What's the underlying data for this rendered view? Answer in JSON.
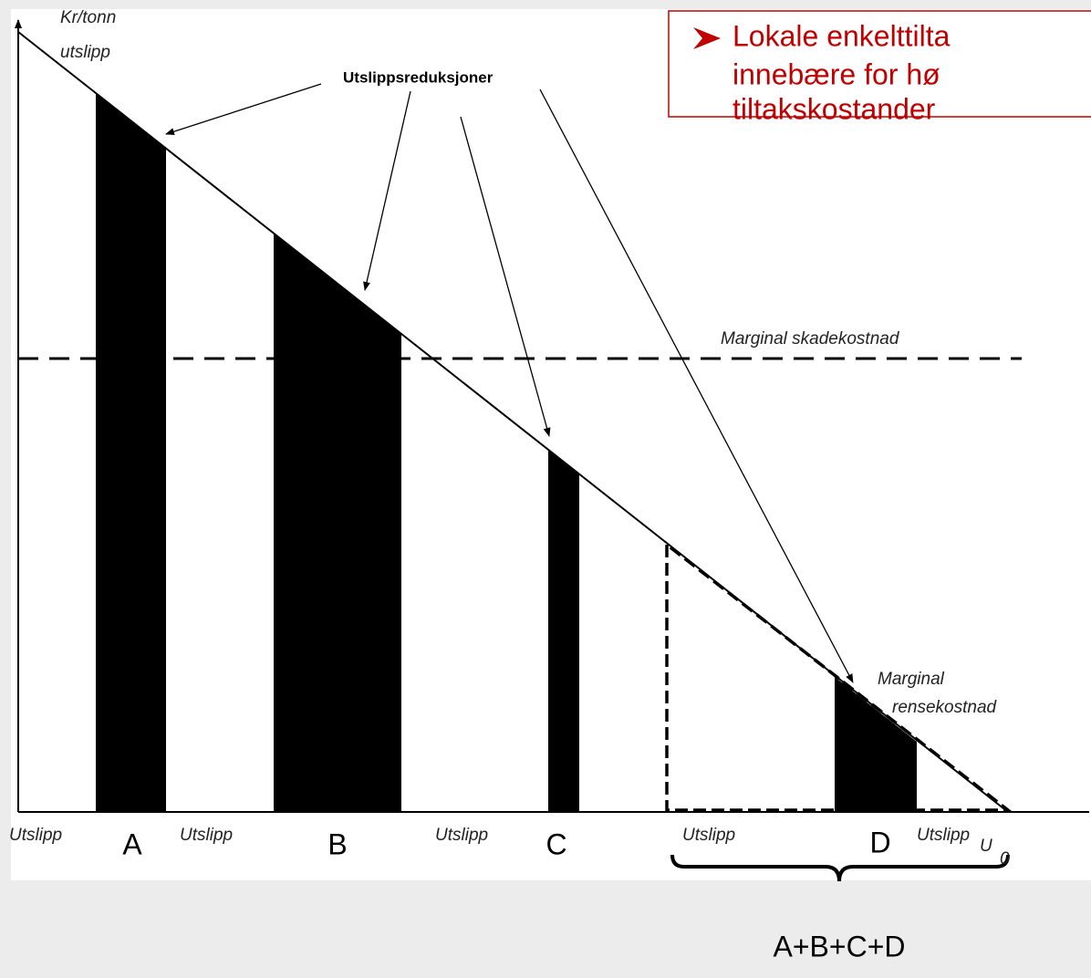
{
  "y_axis_label": [
    "Kr/tonn",
    "utslipp"
  ],
  "pointer_label": "Utslippsreduksjoner",
  "damage_cost_label": "Marginal skadekostnad",
  "abatement_cost_label": [
    "Marginal",
    "rensekostnad"
  ],
  "x_labels": [
    "Utslipp",
    "Utslipp",
    "Utslipp",
    "Utslipp",
    "Utslipp"
  ],
  "bars": [
    "A",
    "B",
    "C",
    "D"
  ],
  "origin_label": {
    "main": "U",
    "sub": "0"
  },
  "brace_label": "A+B+C+D",
  "callout": [
    "Lokale enkelttilta",
    "innebære for hø",
    "tiltakskostander"
  ]
}
